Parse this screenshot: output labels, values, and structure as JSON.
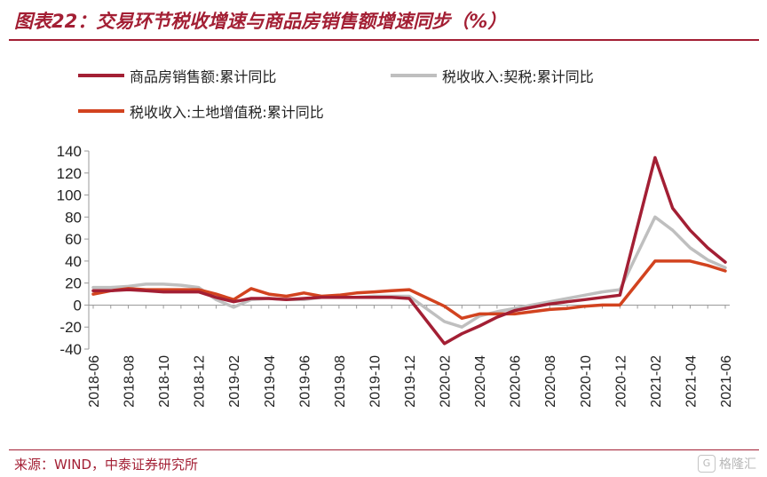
{
  "title": "图表22：交易环节税收增速与商品房销售额增速同步（%）",
  "source": "来源：WIND，中泰证券研究所",
  "watermark": "格隆汇",
  "watermark_logo": "G",
  "chart_data": {
    "type": "line",
    "x": [
      "2018-06",
      "2018-07",
      "2018-08",
      "2018-09",
      "2018-10",
      "2018-11",
      "2018-12",
      "2019-01",
      "2019-02",
      "2019-03",
      "2019-04",
      "2019-05",
      "2019-06",
      "2019-07",
      "2019-08",
      "2019-09",
      "2019-10",
      "2019-11",
      "2019-12",
      "2020-01",
      "2020-02",
      "2020-03",
      "2020-04",
      "2020-05",
      "2020-06",
      "2020-07",
      "2020-08",
      "2020-09",
      "2020-10",
      "2020-11",
      "2020-12",
      "2021-01",
      "2021-02",
      "2021-03",
      "2021-04",
      "2021-05",
      "2021-06"
    ],
    "x_tick_labels": [
      "2018-06",
      "2018-08",
      "2018-10",
      "2018-12",
      "2019-02",
      "2019-04",
      "2019-06",
      "2019-08",
      "2019-10",
      "2019-12",
      "2020-02",
      "2020-04",
      "2020-06",
      "2020-08",
      "2020-10",
      "2020-12",
      "2021-02",
      "2021-04",
      "2021-06"
    ],
    "ylim": [
      -40,
      140
    ],
    "y_ticks": [
      -40,
      -20,
      0,
      20,
      40,
      60,
      80,
      100,
      120,
      140
    ],
    "grid": false,
    "legend_position": "top",
    "series": [
      {
        "name": "商品房销售额:累计同比",
        "color": "#a31f34",
        "values": [
          13,
          13,
          14,
          13,
          12,
          12,
          12,
          7,
          3,
          6,
          6,
          5,
          6,
          7,
          7,
          7,
          7,
          7,
          6,
          null,
          -35,
          -26,
          -19,
          -11,
          -5,
          -2,
          1,
          3,
          5,
          7,
          9,
          null,
          134,
          88,
          68,
          52,
          39
        ]
      },
      {
        "name": "税收收入:契税:累计同比",
        "color": "#bfbfbf",
        "values": [
          16,
          16,
          17,
          19,
          19,
          18,
          16,
          5,
          -2,
          5,
          6,
          5,
          5,
          7,
          7,
          7,
          8,
          8,
          8,
          null,
          -15,
          -20,
          -10,
          -6,
          -3,
          0,
          3,
          6,
          9,
          12,
          14,
          null,
          80,
          68,
          52,
          41,
          34
        ]
      },
      {
        "name": "税收收入:土地增值税:累计同比",
        "color": "#d2431f",
        "values": [
          10,
          13,
          15,
          14,
          14,
          14,
          14,
          10,
          5,
          15,
          10,
          8,
          11,
          8,
          9,
          11,
          12,
          13,
          14,
          null,
          -1,
          -12,
          -8,
          -8,
          -8,
          -6,
          -4,
          -3,
          -1,
          0,
          0,
          null,
          40,
          40,
          40,
          36,
          31
        ]
      }
    ]
  }
}
